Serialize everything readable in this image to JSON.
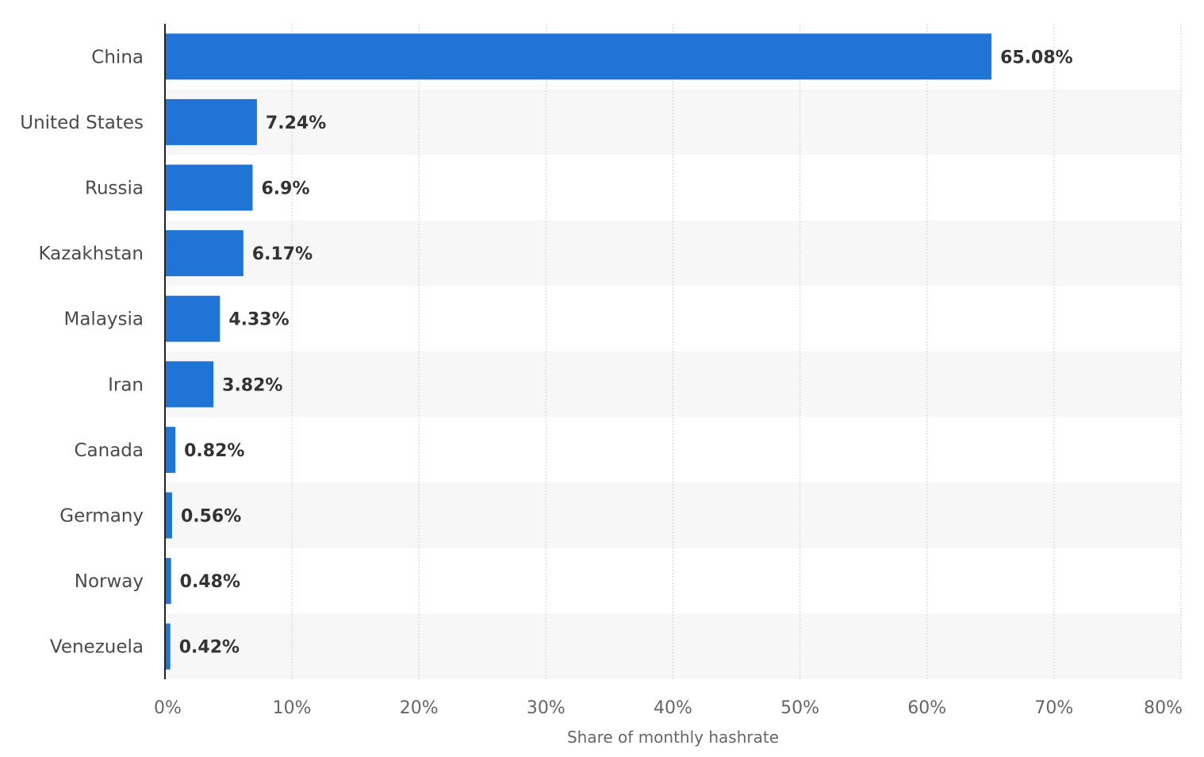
{
  "chart_data": {
    "type": "bar",
    "orientation": "horizontal",
    "categories": [
      "China",
      "United States",
      "Russia",
      "Kazakhstan",
      "Malaysia",
      "Iran",
      "Canada",
      "Germany",
      "Norway",
      "Venezuela"
    ],
    "values": [
      65.08,
      7.24,
      6.9,
      6.17,
      4.33,
      3.82,
      0.82,
      0.56,
      0.48,
      0.42
    ],
    "value_labels": [
      "65.08%",
      "7.24%",
      "6.9%",
      "6.17%",
      "4.33%",
      "3.82%",
      "0.82%",
      "0.56%",
      "0.48%",
      "0.42%"
    ],
    "xlabel": "Share of monthly hashrate",
    "ylabel": "",
    "xlim": [
      0,
      80
    ],
    "x_ticks": [
      0,
      10,
      20,
      30,
      40,
      50,
      60,
      70,
      80
    ],
    "x_tick_labels": [
      "0%",
      "10%",
      "20%",
      "30%",
      "40%",
      "50%",
      "60%",
      "70%",
      "80%"
    ],
    "grid": true,
    "colors": {
      "bar": "#1f74d6",
      "stripe": "#f7f7f7",
      "grid": "#cfcfcf",
      "axis": "#222222"
    }
  }
}
